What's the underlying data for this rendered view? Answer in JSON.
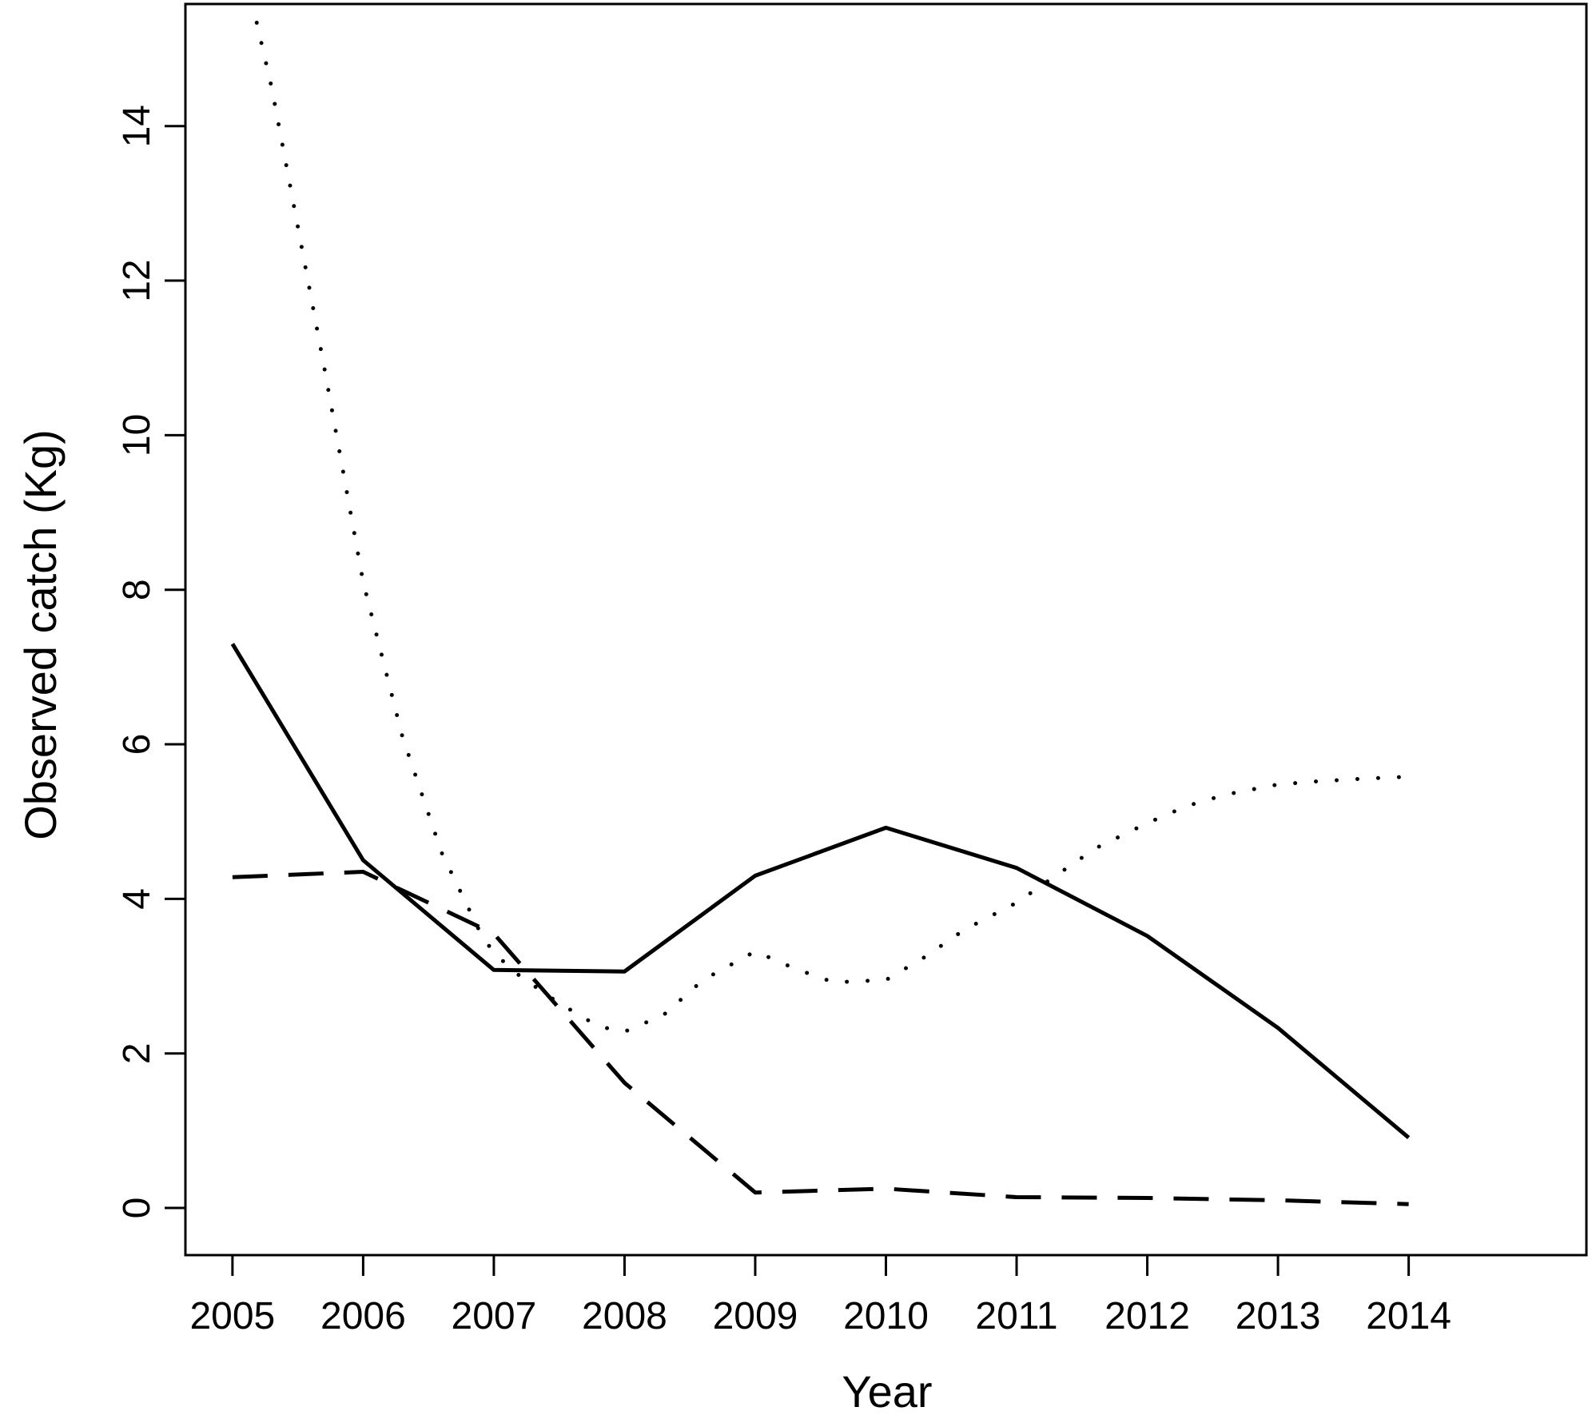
{
  "chart_data": {
    "type": "line",
    "title": "",
    "xlabel": "Year",
    "ylabel": "Observed catch (Kg)",
    "x": [
      2005,
      2006,
      2007,
      2008,
      2009,
      2010,
      2011,
      2012,
      2013,
      2014
    ],
    "x_tick_labels": [
      "2005",
      "2006",
      "2007",
      "2008",
      "2009",
      "2010",
      "2011",
      "2012",
      "2013",
      "2014"
    ],
    "y_ticks": [
      0,
      2,
      4,
      6,
      8,
      10,
      12,
      14
    ],
    "y_tick_labels": [
      "0",
      "2",
      "4",
      "6",
      "8",
      "10",
      "12",
      "14"
    ],
    "xlim": [
      2004.64,
      2015.36
    ],
    "ylim": [
      -0.61,
      15.58
    ],
    "grid": false,
    "legend": "none",
    "series": [
      {
        "style": "solid",
        "color": "#000000",
        "values": [
          7.3,
          4.5,
          3.08,
          3.06,
          4.3,
          4.92,
          4.4,
          3.52,
          2.33,
          0.91
        ]
      },
      {
        "style": "dashed",
        "color": "#000000",
        "values": [
          4.28,
          4.35,
          3.55,
          1.62,
          0.2,
          0.25,
          0.14,
          0.13,
          0.1,
          0.05
        ]
      },
      {
        "style": "dotted",
        "color": "#000000",
        "x": [
          2005.15,
          2005.3,
          2005.5,
          2005.7,
          2006.0,
          2006.3,
          2006.6,
          2006.9,
          2007.0,
          2007.2,
          2007.5,
          2007.8,
          2008.0,
          2008.3,
          2008.6,
          2009.0,
          2009.3,
          2009.6,
          2010.0,
          2010.3,
          2010.6,
          2011.0,
          2011.3,
          2011.6,
          2012.0,
          2012.3,
          2012.6,
          2013.0,
          2013.3,
          2013.6,
          2014.0
        ],
        "values": [
          15.6,
          14.5,
          12.7,
          10.9,
          8.1,
          6.1,
          4.6,
          3.55,
          3.3,
          3.0,
          2.65,
          2.35,
          2.28,
          2.5,
          2.95,
          3.32,
          3.1,
          2.92,
          2.95,
          3.25,
          3.6,
          3.95,
          4.3,
          4.65,
          4.98,
          5.2,
          5.35,
          5.48,
          5.52,
          5.55,
          5.58
        ]
      }
    ]
  }
}
